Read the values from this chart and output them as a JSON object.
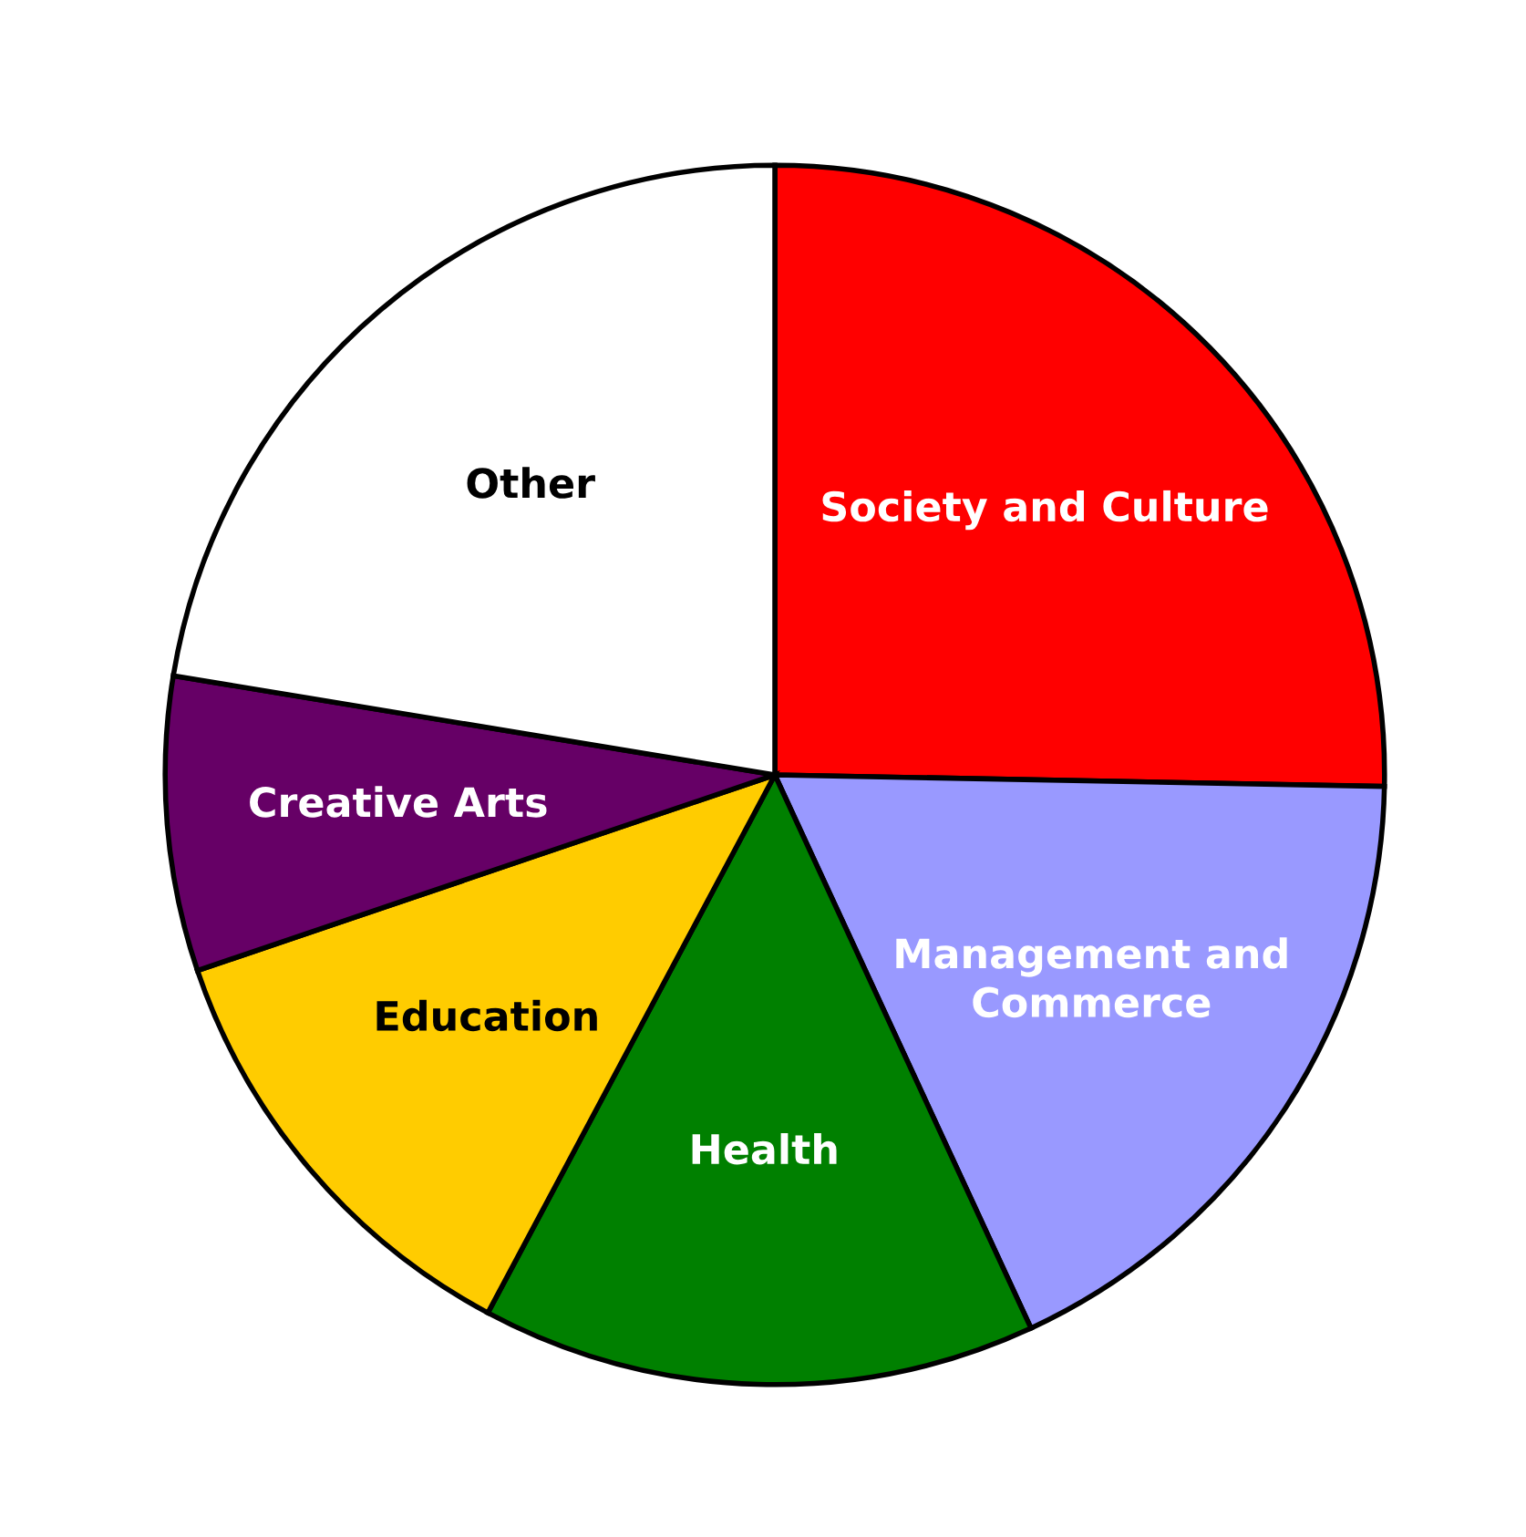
{
  "chart_data": {
    "type": "pie",
    "categories": [
      "Society and Culture",
      "Management and\nCommerce",
      "Health",
      "Education",
      "Creative Arts",
      "Other"
    ],
    "values": [
      25.3,
      17.8,
      14.7,
      12.0,
      7.8,
      22.4
    ],
    "colors": [
      "#ff0000",
      "#9999ff",
      "#008000",
      "#ffcc00",
      "#660066",
      "#ffffff"
    ]
  }
}
